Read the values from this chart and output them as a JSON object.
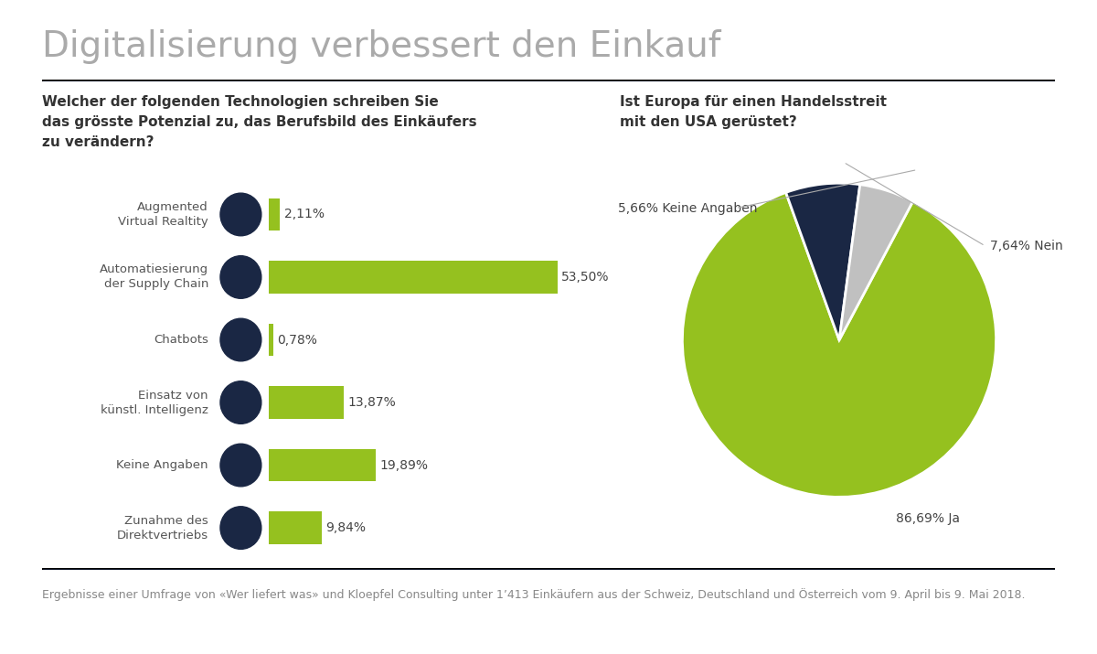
{
  "title": "Digitalisierung verbessert den Einkauf",
  "title_color": "#aaaaaa",
  "title_fontsize": 28,
  "bar_question": "Welcher der folgenden Technologien schreiben Sie\ndas grösste Potenzial zu, das Berufsbild des Einkäufers\nzu verändern?",
  "pie_question": "Ist Europa für einen Handelsstreit\nmit den USA gerüstet?",
  "bar_labels": [
    "Augmented\nVirtual Realtity",
    "Automatiesierung\nder Supply Chain",
    "Chatbots",
    "Einsatz von\nkünstl. Intelligenz",
    "Keine Angaben",
    "Zunahme des\nDirektvertriebs"
  ],
  "bar_values": [
    2.11,
    53.5,
    0.78,
    13.87,
    19.89,
    9.84
  ],
  "bar_value_labels": [
    "2,11%",
    "53,50%",
    "0,78%",
    "13,87%",
    "19,89%",
    "9,84%"
  ],
  "bar_color": "#95C11F",
  "bar_icon_color": "#1A2744",
  "pie_values": [
    86.69,
    7.64,
    5.66
  ],
  "pie_labels": [
    "Ja",
    "Nein",
    "Keine Angaben"
  ],
  "pie_pct_labels": [
    "86,69%",
    "7,64%",
    "5,66%"
  ],
  "pie_colors": [
    "#95C11F",
    "#1A2744",
    "#C0C0C0"
  ],
  "footer_text": "Ergebnisse einer Umfrage von «Wer liefert was» und Kloepfel Consulting unter 1’413 Einkäufern aus der Schweiz, Deutschland und Österreich vom 9. April bis 9. Mai 2018.",
  "footer_color": "#888888",
  "footer_fontsize": 9,
  "separator_color": "#1A2744",
  "background_color": "#FFFFFF",
  "question_fontsize": 11,
  "label_fontsize": 9.5,
  "value_fontsize": 10
}
